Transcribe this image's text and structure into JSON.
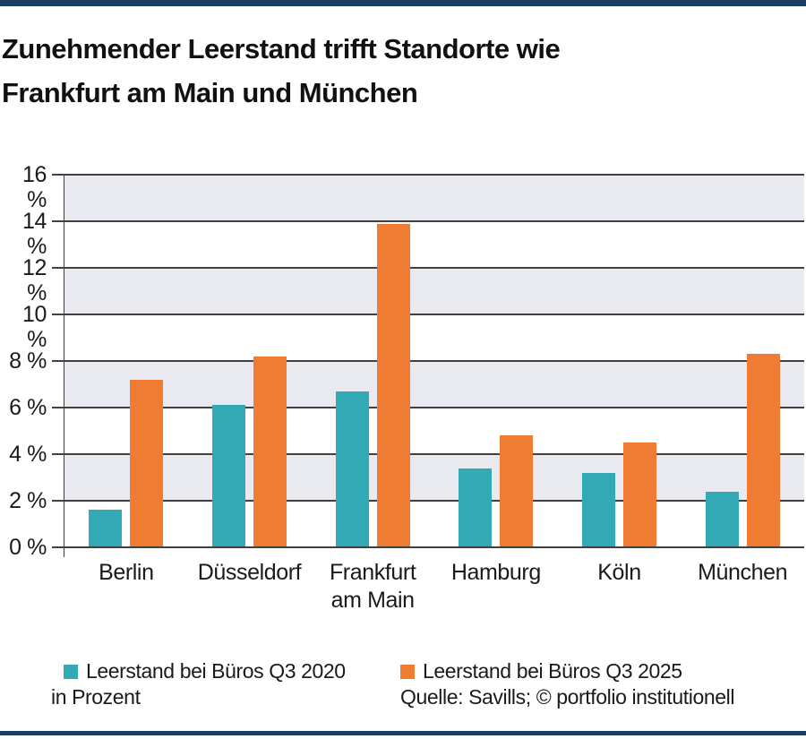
{
  "page": {
    "title_line1": "Zunehmender Leerstand trifft Standorte wie",
    "title_line2": "Frankfurt am Main und München"
  },
  "chart_data": {
    "type": "bar",
    "title": "Zunehmender Leerstand trifft Standorte wie Frankfurt am Main und München",
    "categories": [
      "Berlin",
      "Düsseldorf",
      "Frankfurt am Main",
      "Hamburg",
      "Köln",
      "München"
    ],
    "category_lines": [
      [
        "Berlin"
      ],
      [
        "Düsseldorf"
      ],
      [
        "Frankfurt",
        "am Main"
      ],
      [
        "Hamburg"
      ],
      [
        "Köln"
      ],
      [
        "München"
      ]
    ],
    "series": [
      {
        "name": "Leerstand bei Büros Q3 2020",
        "color": "#33a9b6",
        "values": [
          1.6,
          6.1,
          6.7,
          3.4,
          3.2,
          2.4
        ]
      },
      {
        "name": "Leerstand bei Büros Q3 2025",
        "color": "#ee7d33",
        "values": [
          7.2,
          8.2,
          13.9,
          4.8,
          4.5,
          8.3
        ]
      }
    ],
    "unit": "Prozent",
    "xlabel": "",
    "ylabel": "",
    "ylim": [
      0,
      16
    ],
    "ytick_step": 2,
    "ytick_labels": [
      "0 %",
      "2 %",
      "4 %",
      "6 %",
      "8 %",
      "10 %",
      "12 %",
      "14 %",
      "16 %"
    ],
    "grid": true,
    "shaded_bands": [
      [
        2,
        4
      ],
      [
        6,
        8
      ],
      [
        10,
        12
      ],
      [
        14,
        16
      ]
    ],
    "band_color": "#e9e9f0",
    "grid_line_color": "#404040",
    "legend_position": "bottom"
  },
  "legend": {
    "items": [
      {
        "label": "Leerstand bei Büros Q3 2020",
        "color": "#33a9b6"
      },
      {
        "label": "Leerstand bei Büros Q3 2025",
        "color": "#ee7d33"
      }
    ],
    "unit_note": "in Prozent"
  },
  "source_note": "Quelle: Savills; © portfolio institutionell",
  "colors": {
    "frame": "#1d3d63",
    "title_text": "#111111",
    "label_text": "#1a1a1a"
  }
}
